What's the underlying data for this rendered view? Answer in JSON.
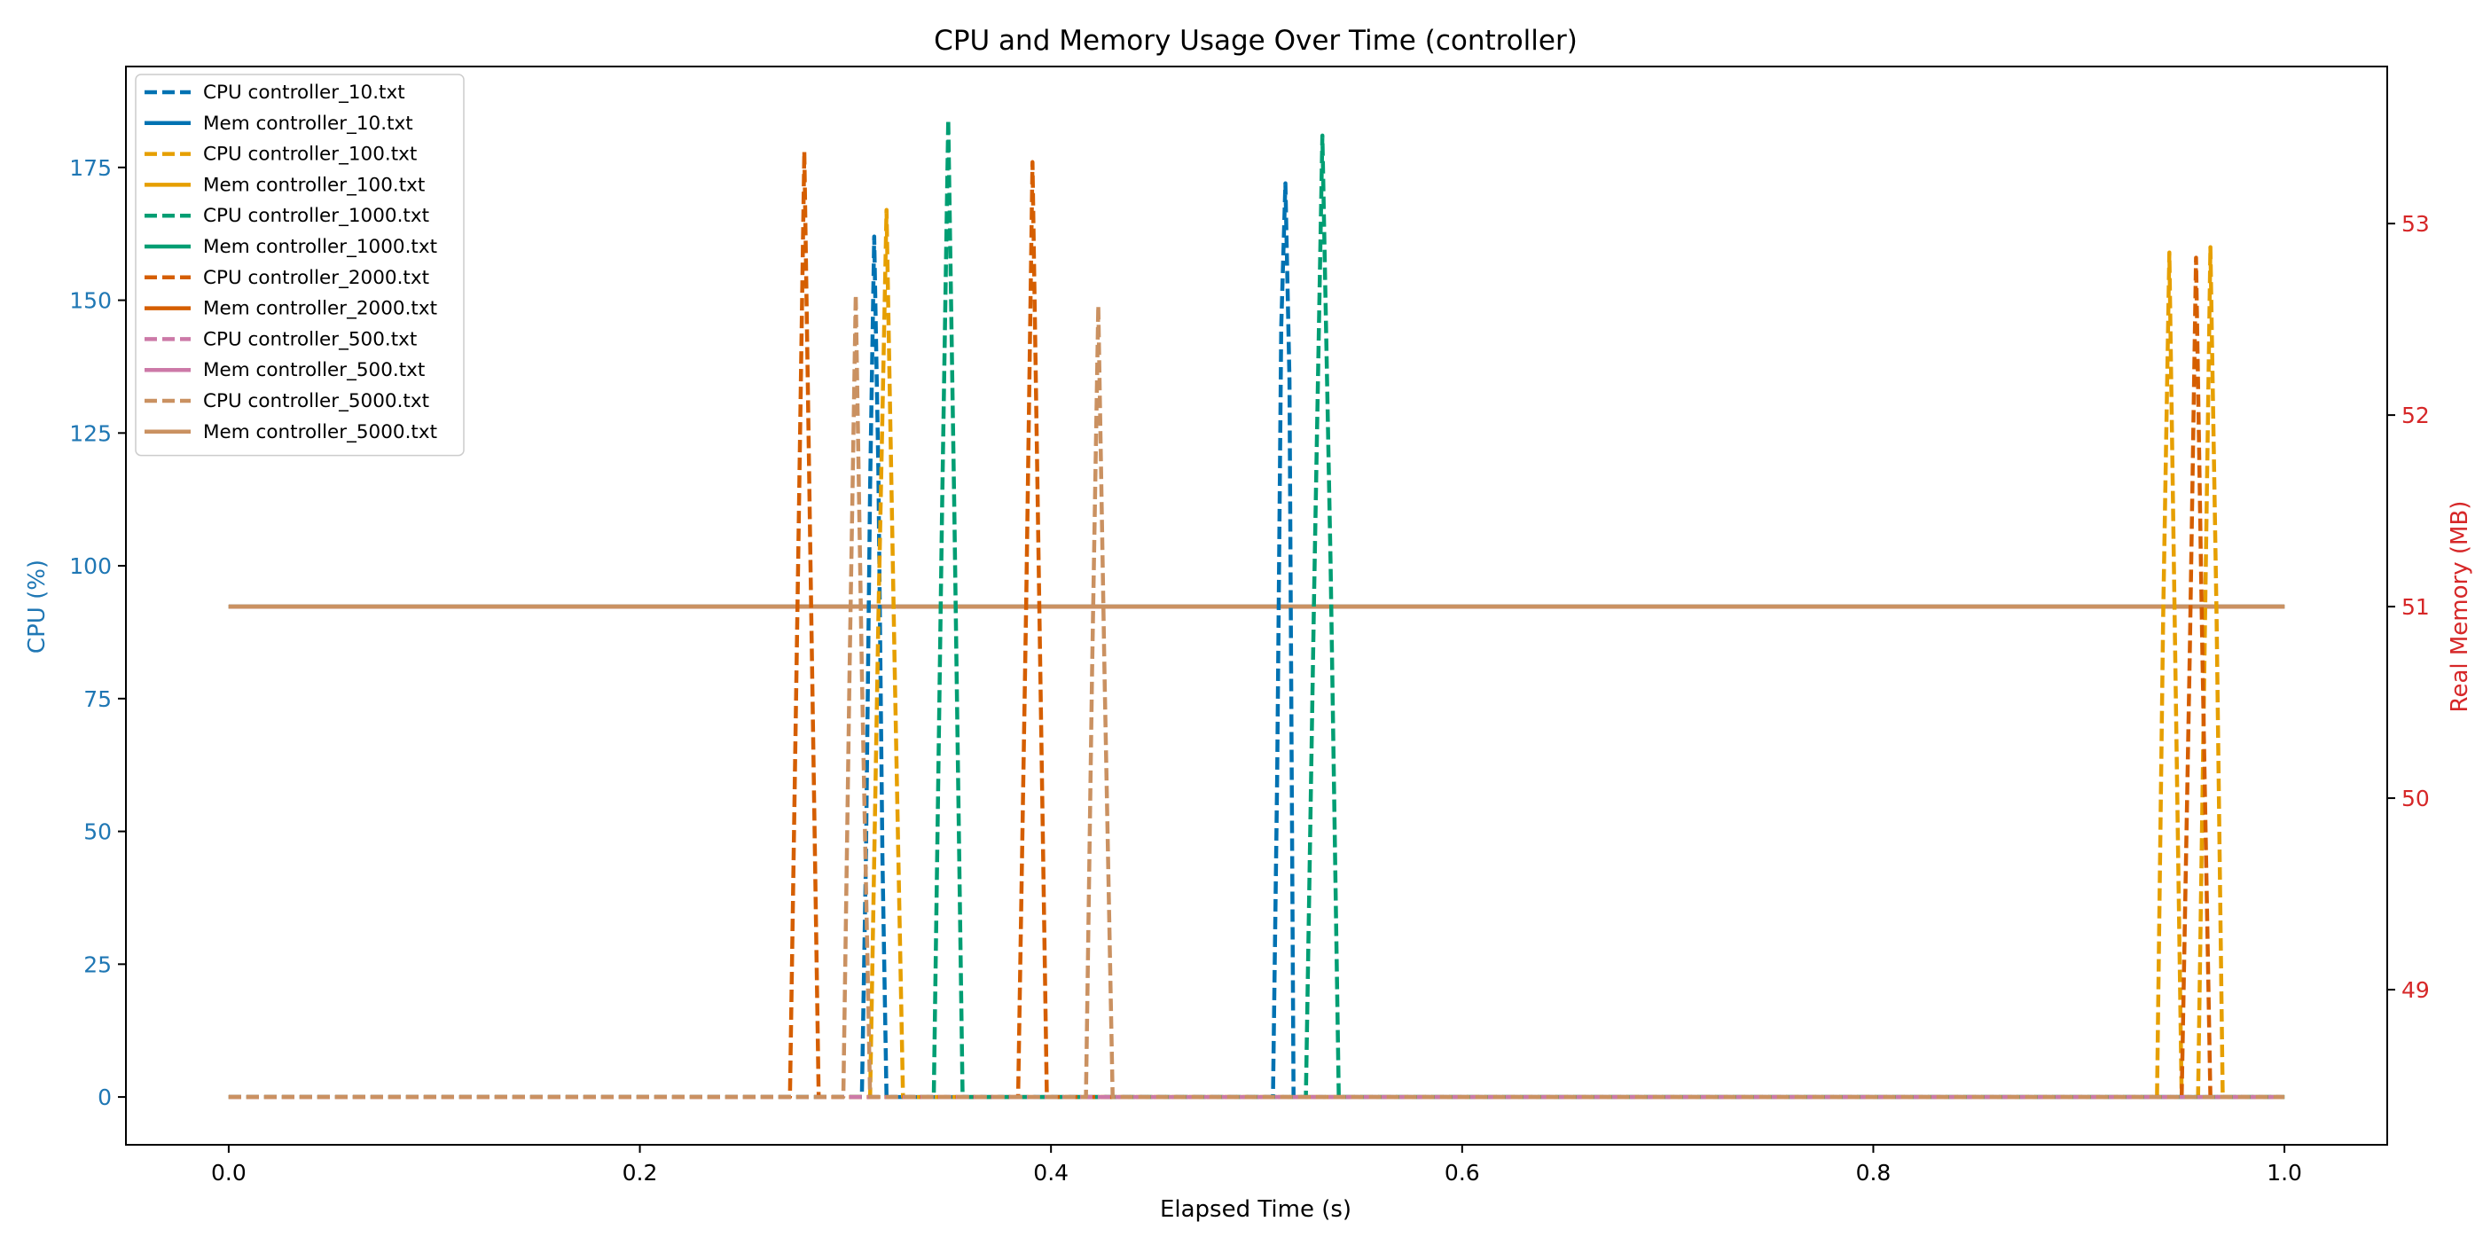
{
  "chart_data": {
    "type": "line",
    "title": "CPU and Memory Usage Over Time (controller)",
    "xlabel": "Elapsed Time (s)",
    "ylabel_left": "CPU (%)",
    "ylabel_right": "Real Memory (MB)",
    "xlim": [
      -0.05,
      1.05
    ],
    "ylim_left": [
      -9,
      194
    ],
    "ylim_right": [
      48.19,
      53.82
    ],
    "xticks": [
      0.0,
      0.2,
      0.4,
      0.6,
      0.8,
      1.0
    ],
    "xtick_labels": [
      "0.0",
      "0.2",
      "0.4",
      "0.6",
      "0.8",
      "1.0"
    ],
    "yticks_left": [
      0,
      25,
      50,
      75,
      100,
      125,
      150,
      175
    ],
    "ytick_labels_left": [
      "0",
      "25",
      "50",
      "75",
      "100",
      "125",
      "150",
      "175"
    ],
    "yticks_right": [
      49,
      50,
      51,
      52,
      53
    ],
    "ytick_labels_right": [
      "49",
      "50",
      "51",
      "52",
      "53"
    ],
    "grid": false,
    "legend_position": "upper left",
    "axis_colors": {
      "left": "#1f77b4",
      "right": "#d62728"
    },
    "series": [
      {
        "name": "CPU controller_10.txt",
        "axis": "left",
        "style": "dashed",
        "color": "#0072b2",
        "x": [
          0.0,
          0.308,
          0.31,
          0.312,
          0.314,
          0.316,
          0.318,
          0.32,
          0.508,
          0.51,
          0.512,
          0.514,
          0.516,
          0.518,
          1.0
        ],
        "y": [
          0,
          0,
          45,
          115,
          162,
          118,
          45,
          0,
          0,
          60,
          145,
          172,
          135,
          0,
          0
        ]
      },
      {
        "name": "Mem controller_10.txt",
        "axis": "right",
        "style": "solid",
        "color": "#0072b2",
        "x": [
          0.0,
          1.0
        ],
        "y": [
          51.0,
          51.0
        ]
      },
      {
        "name": "CPU controller_100.txt",
        "axis": "left",
        "style": "dashed",
        "color": "#e69f00",
        "x": [
          0.0,
          0.312,
          0.316,
          0.32,
          0.324,
          0.328,
          0.938,
          0.941,
          0.944,
          0.947,
          0.95,
          0.958,
          0.961,
          0.964,
          0.967,
          0.97,
          1.0
        ],
        "y": [
          0,
          0,
          90,
          167,
          80,
          0,
          0,
          90,
          159,
          80,
          0,
          0,
          80,
          160,
          90,
          0,
          0
        ]
      },
      {
        "name": "Mem controller_100.txt",
        "axis": "right",
        "style": "solid",
        "color": "#e69f00",
        "x": [
          0.0,
          1.0
        ],
        "y": [
          51.0,
          51.0
        ]
      },
      {
        "name": "CPU controller_1000.txt",
        "axis": "left",
        "style": "dashed",
        "color": "#009e73",
        "x": [
          0.0,
          0.343,
          0.347,
          0.35,
          0.353,
          0.357,
          0.524,
          0.528,
          0.532,
          0.536,
          0.54,
          1.0
        ],
        "y": [
          0,
          0,
          110,
          184,
          110,
          0,
          0,
          95,
          181,
          100,
          0,
          0
        ]
      },
      {
        "name": "Mem controller_1000.txt",
        "axis": "right",
        "style": "solid",
        "color": "#009e73",
        "x": [
          0.0,
          1.0
        ],
        "y": [
          51.0,
          51.0
        ]
      },
      {
        "name": "CPU controller_2000.txt",
        "axis": "left",
        "style": "dashed",
        "color": "#d55e00",
        "x": [
          0.0,
          0.273,
          0.277,
          0.28,
          0.283,
          0.287,
          0.384,
          0.388,
          0.391,
          0.394,
          0.398,
          0.95,
          0.954,
          0.957,
          0.96,
          0.964,
          1.0
        ],
        "y": [
          0,
          0,
          100,
          178,
          100,
          0,
          0,
          95,
          176,
          100,
          0,
          0,
          85,
          158,
          85,
          0,
          0
        ]
      },
      {
        "name": "Mem controller_2000.txt",
        "axis": "right",
        "style": "solid",
        "color": "#d55e00",
        "x": [
          0.0,
          1.0
        ],
        "y": [
          51.0,
          51.0
        ]
      },
      {
        "name": "CPU controller_500.txt",
        "axis": "left",
        "style": "dashed",
        "color": "#cc79a7",
        "x": [
          0.0,
          1.0
        ],
        "y": [
          0,
          0
        ]
      },
      {
        "name": "Mem controller_500.txt",
        "axis": "right",
        "style": "solid",
        "color": "#cc79a7",
        "x": [
          0.0,
          1.0
        ],
        "y": [
          51.0,
          51.0
        ]
      },
      {
        "name": "CPU controller_5000.txt",
        "axis": "left",
        "style": "dashed",
        "color": "#ca9161",
        "x": [
          0.0,
          0.299,
          0.302,
          0.305,
          0.308,
          0.312,
          0.417,
          0.42,
          0.423,
          0.426,
          0.43,
          1.0
        ],
        "y": [
          0,
          0,
          80,
          151,
          80,
          0,
          0,
          80,
          149,
          80,
          0,
          0
        ]
      },
      {
        "name": "Mem controller_5000.txt",
        "axis": "right",
        "style": "solid",
        "color": "#ca9161",
        "x": [
          0.0,
          1.0
        ],
        "y": [
          51.0,
          51.0
        ]
      }
    ]
  }
}
